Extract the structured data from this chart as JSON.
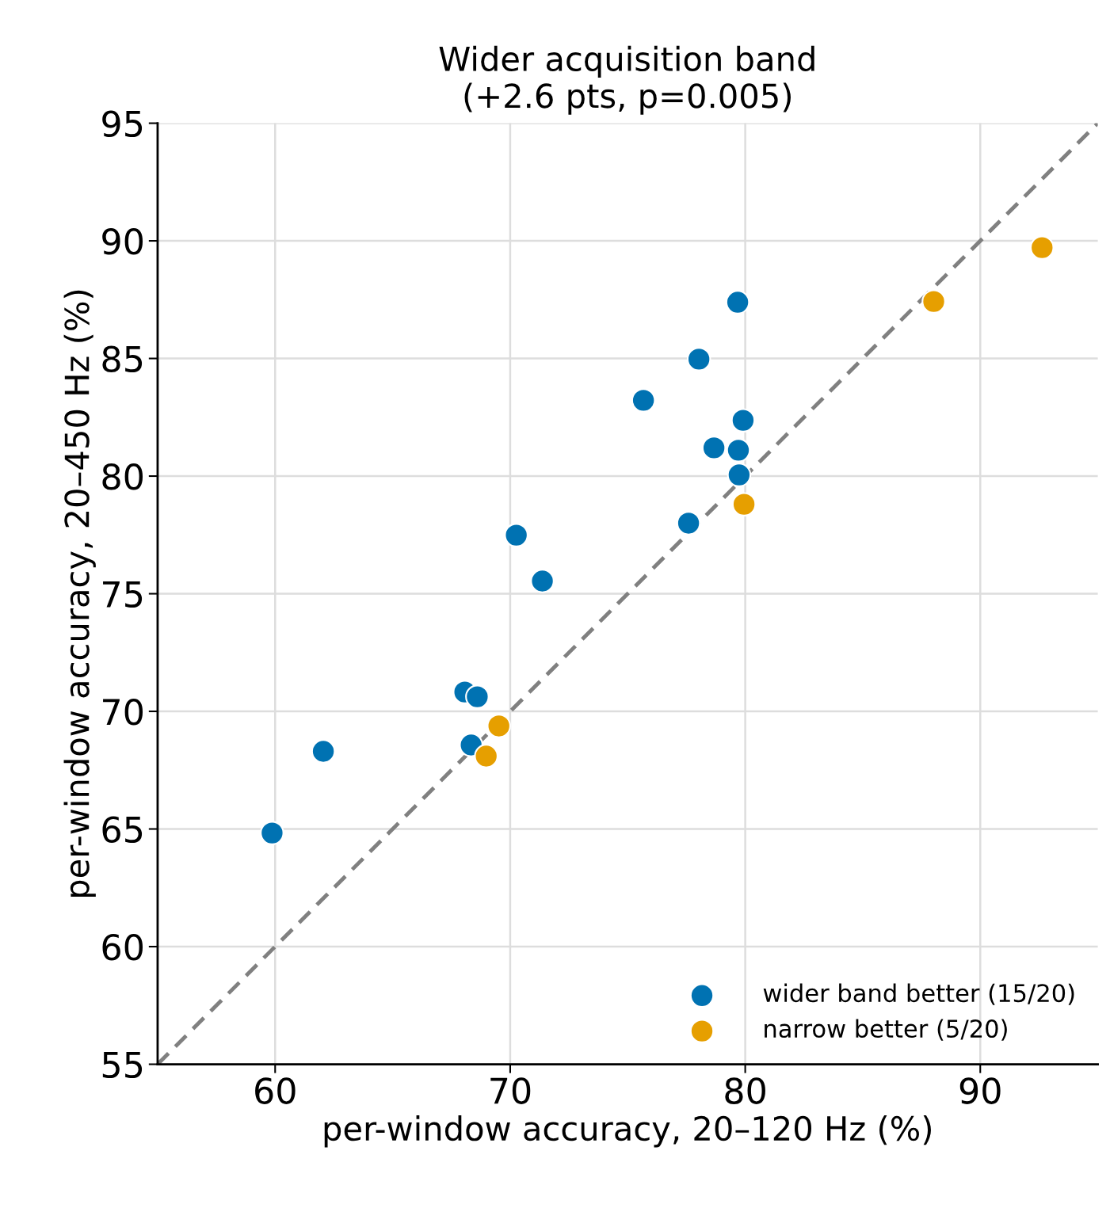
{
  "chart_data": {
    "type": "scatter",
    "title": "Wider acquisition band\n(+2.6 pts, p=0.005)",
    "xlabel": "per-window accuracy, 20–120 Hz (%)",
    "ylabel": "per-window accuracy, 20–450 Hz (%)",
    "series": [
      {
        "type": "line",
        "color": "#808080",
        "line_style": "dashed",
        "marker": "none",
        "x": [
          55,
          95
        ],
        "values": [
          55,
          95
        ]
      },
      {
        "name": "wider band better (15/20)",
        "color": "#0072b2",
        "x": [
          59.87,
          62.05,
          68.34,
          68.07,
          68.6,
          70.26,
          71.37,
          75.67,
          78.03,
          79.68,
          79.91,
          78.67,
          79.71,
          79.74,
          77.59
        ],
        "values": [
          64.83,
          68.3,
          68.57,
          70.82,
          70.62,
          77.49,
          75.54,
          83.22,
          84.97,
          87.39,
          82.37,
          81.2,
          81.1,
          80.05,
          78.0
        ]
      },
      {
        "name": "narrow better (5/20)",
        "color": "#e69f00",
        "x": [
          92.63,
          88.02,
          79.95,
          69.52,
          68.98
        ],
        "values": [
          89.71,
          87.42,
          78.8,
          69.38,
          68.1
        ]
      }
    ],
    "marker": "circle",
    "xlim": [
      55,
      95
    ],
    "ylim": [
      55,
      95
    ],
    "xticks": [
      60,
      70,
      80,
      90
    ],
    "yticks": [
      55,
      60,
      65,
      70,
      75,
      80,
      85,
      90,
      95
    ],
    "grid": true,
    "legend": "bottom right"
  }
}
